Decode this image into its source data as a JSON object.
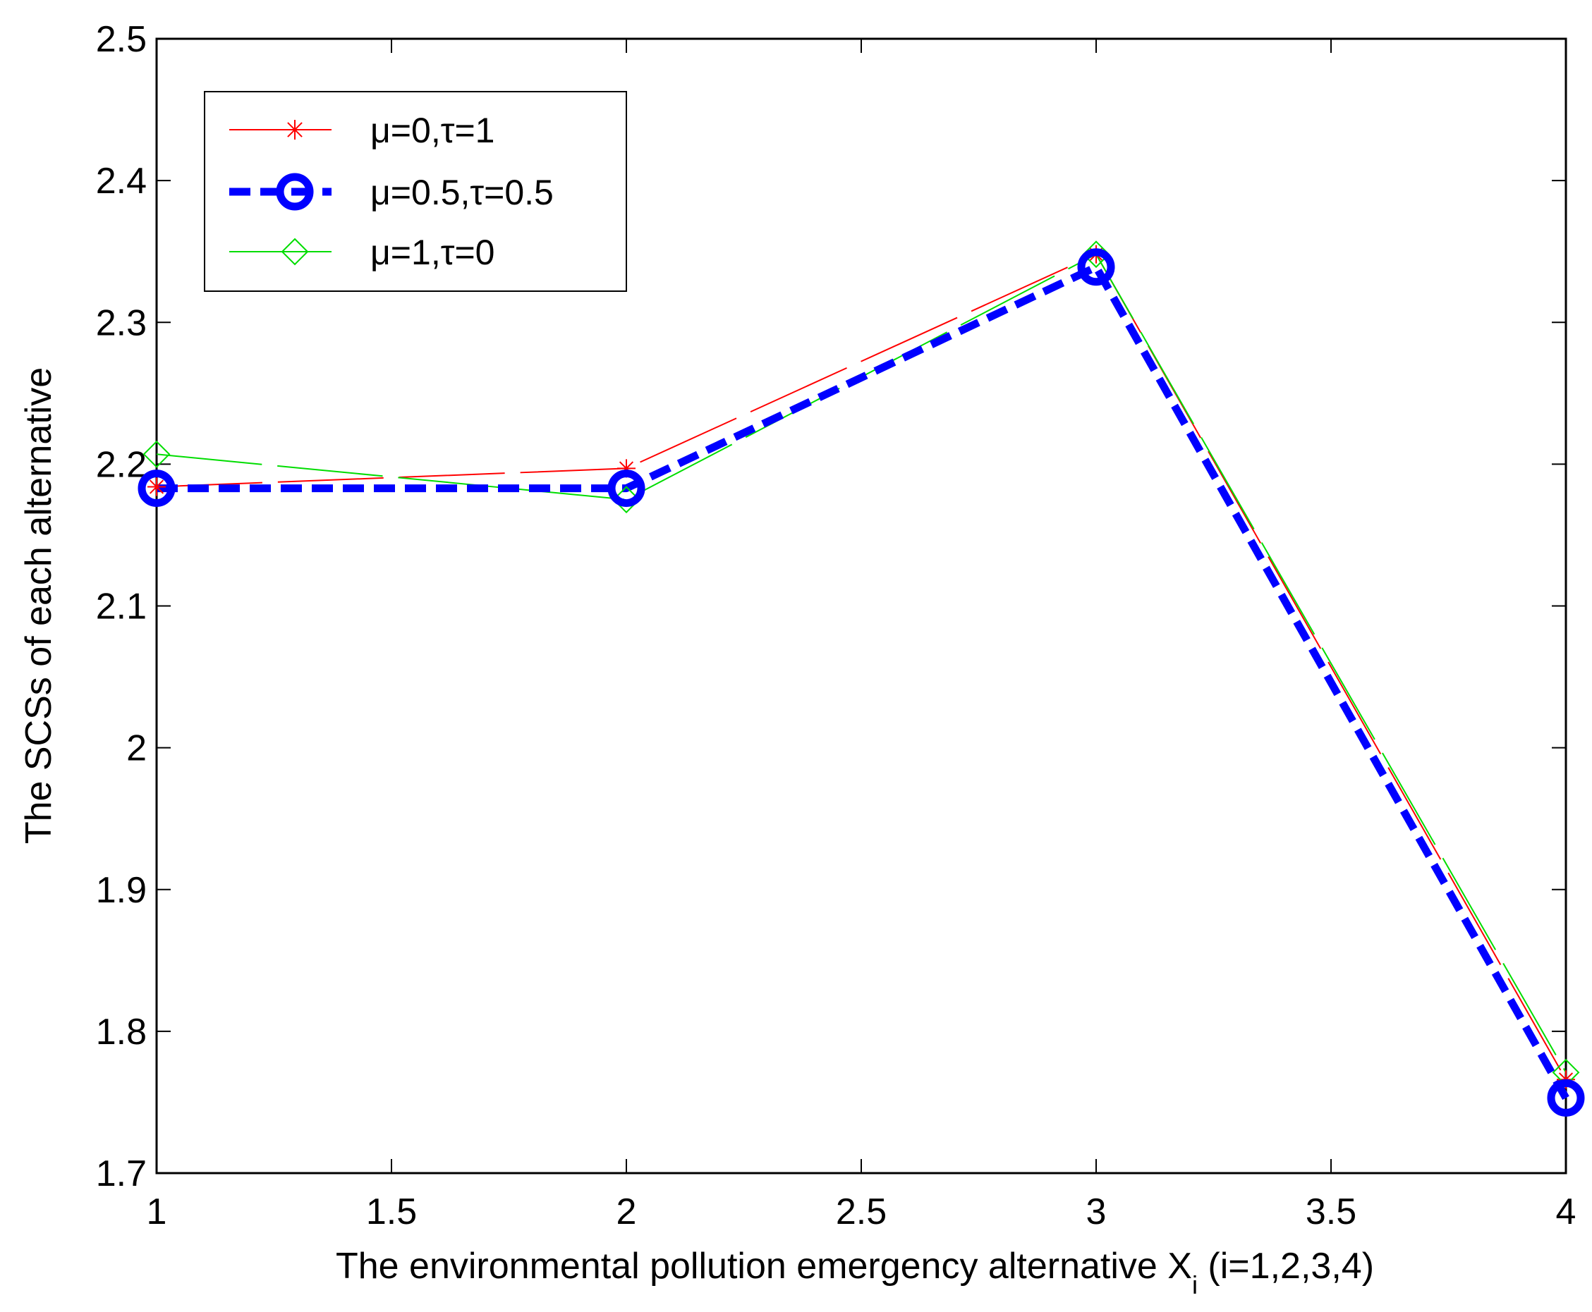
{
  "chart_data": {
    "type": "line",
    "title": "",
    "xlabel": "The environmental pollution emergency alternative X",
    "xlabel_subscript": "i",
    "xlabel_suffix": " (i=1,2,3,4)",
    "ylabel": "The SCSs of each alternative",
    "xlim": [
      1,
      4
    ],
    "ylim": [
      1.7,
      2.5
    ],
    "xticks": [
      1,
      1.5,
      2,
      2.5,
      3,
      3.5,
      4
    ],
    "xtick_labels": [
      "1",
      "1.5",
      "2",
      "2.5",
      "3",
      "3.5",
      "4"
    ],
    "yticks": [
      1.7,
      1.8,
      1.9,
      2.0,
      2.1,
      2.2,
      2.3,
      2.4,
      2.5
    ],
    "ytick_labels": [
      "1.7",
      "1.8",
      "1.9",
      "2",
      "2.1",
      "2.2",
      "2.3",
      "2.4",
      "2.5"
    ],
    "grid": false,
    "legend_position": "top-left",
    "x": [
      1,
      2,
      3,
      4
    ],
    "series": [
      {
        "name": "μ=0,τ=1",
        "values": [
          2.184,
          2.197,
          2.348,
          1.766
        ],
        "color": "#ff0000",
        "marker": "asterisk",
        "line_style": "long-dash",
        "line_weight": "thin"
      },
      {
        "name": "μ=0.5,τ=0.5",
        "values": [
          2.183,
          2.183,
          2.339,
          1.753
        ],
        "color": "#0000ff",
        "marker": "circle",
        "line_style": "dash",
        "line_weight": "bold"
      },
      {
        "name": "μ=1,τ=0",
        "values": [
          2.207,
          2.175,
          2.348,
          1.771
        ],
        "color": "#00dd00",
        "marker": "diamond",
        "line_style": "long-dash",
        "line_weight": "thin"
      }
    ]
  }
}
